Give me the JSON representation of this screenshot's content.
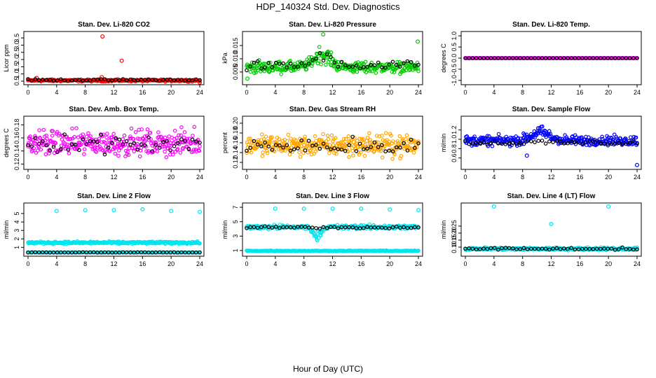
{
  "page": {
    "title": "HDP_140324  Std. Dev. Diagnostics",
    "xlabel": "Hour of Day (UTC)"
  },
  "chart_data": [
    {
      "type": "scatter",
      "title": "Stan. Dev. Li-820 CO2",
      "ylabel": "Licor ppm",
      "xlim": [
        0,
        24
      ],
      "ylim": [
        0.4,
        3.8
      ],
      "xticks": [
        0,
        4,
        8,
        12,
        16,
        20,
        24
      ],
      "yticks": [
        "0.5",
        "1.0",
        "1.5",
        "2.0",
        "2.5",
        "3.0",
        "3.5"
      ],
      "series": [
        {
          "color": "#ff0000",
          "base": 0.55,
          "noise": 0.06,
          "n": 280,
          "outliers": [
            [
              10.4,
              3.6
            ],
            [
              13.1,
              1.92
            ],
            [
              10.3,
              0.78
            ],
            [
              1.2,
              0.72
            ],
            [
              24,
              0.4
            ]
          ]
        },
        {
          "color": "#000000",
          "base": 0.58,
          "noise": 0.05,
          "n": 48
        }
      ]
    },
    {
      "type": "scatter",
      "title": "Stan. Dev. Li-820 Pressure",
      "ylabel": "kPa",
      "xlim": [
        0,
        24
      ],
      "ylim": [
        0.001,
        0.0195
      ],
      "xticks": [
        0,
        4,
        8,
        12,
        16,
        20,
        24
      ],
      "yticks": [
        "0.005",
        "0.010",
        "0.015"
      ],
      "series": [
        {
          "color": "#00cc00",
          "base": 0.0068,
          "noise": 0.0018,
          "n": 320,
          "bump": [
            10.5,
            0.005,
            1.6
          ],
          "outliers": [
            [
              10.7,
              0.0192
            ],
            [
              23.9,
              0.0165
            ],
            [
              0.1,
              0.0025
            ]
          ]
        },
        {
          "color": "#000000",
          "base": 0.0072,
          "noise": 0.0015,
          "n": 48,
          "bump": [
            10.5,
            0.004,
            1.6
          ]
        }
      ]
    },
    {
      "type": "scatter",
      "title": "Stan. Dev. Li-820 Temp.",
      "ylabel": "degrees C",
      "xlim": [
        0,
        24
      ],
      "ylim": [
        -1.1,
        1.1
      ],
      "xticks": [
        0,
        4,
        8,
        12,
        16,
        20,
        24
      ],
      "yticks": [
        "-1.0",
        "-0.5",
        "0.0",
        "0.5",
        "1.0"
      ],
      "series": [
        {
          "color": "#ff00ff",
          "base": 0.0,
          "noise": 0.0,
          "n": 240
        },
        {
          "color": "#000000",
          "base": 0.0,
          "noise": 0.0,
          "n": 48
        }
      ]
    },
    {
      "type": "scatter",
      "title": "Stan. Dev. Amb. Box Temp.",
      "ylabel": "degrees C",
      "xlim": [
        0,
        24
      ],
      "ylim": [
        0.115,
        0.19
      ],
      "xticks": [
        0,
        4,
        8,
        12,
        16,
        20,
        24
      ],
      "yticks": [
        "0.12",
        "0.14",
        "0.16",
        "0.18"
      ],
      "series": [
        {
          "color": "#ff00ff",
          "base": 0.152,
          "noise": 0.016,
          "n": 320
        },
        {
          "color": "#000000",
          "base": 0.152,
          "noise": 0.012,
          "n": 48
        }
      ]
    },
    {
      "type": "scatter",
      "title": "Stan. Dev. Gas Stream RH",
      "ylabel": "percent",
      "xlim": [
        0,
        24
      ],
      "ylim": [
        0.11,
        0.21
      ],
      "xticks": [
        0,
        4,
        8,
        12,
        16,
        20,
        24
      ],
      "yticks": [
        "0.12",
        "0.14",
        "0.16",
        "0.18",
        "0.20"
      ],
      "series": [
        {
          "color": "#ffa500",
          "base": 0.155,
          "noise": 0.018,
          "n": 340
        },
        {
          "color": "#000000",
          "base": 0.155,
          "noise": 0.015,
          "n": 48
        }
      ]
    },
    {
      "type": "scatter",
      "title": "Stan. Dev. Sample Flow",
      "ylabel": "ml/min",
      "xlim": [
        0,
        24
      ],
      "ylim": [
        0.4,
        1.45
      ],
      "xticks": [
        0,
        4,
        8,
        12,
        16,
        20,
        24
      ],
      "yticks": [
        "0.6",
        "0.8",
        "1.0",
        "1.2"
      ],
      "series": [
        {
          "color": "#0000ff",
          "base": 0.97,
          "noise": 0.09,
          "n": 320,
          "bump": [
            10.5,
            0.18,
            1.8
          ],
          "outliers": [
            [
              24,
              0.45
            ],
            [
              8.6,
              0.65
            ]
          ]
        },
        {
          "color": "#000000",
          "base": 0.93,
          "noise": 0.05,
          "n": 48
        }
      ]
    },
    {
      "type": "scatter",
      "title": "Stan. Dev. Line 2 Flow",
      "ylabel": "ml/min",
      "xlim": [
        0,
        24
      ],
      "ylim": [
        0.2,
        6.0
      ],
      "xticks": [
        0,
        4,
        8,
        12,
        16,
        20,
        24
      ],
      "yticks": [
        "1",
        "2",
        "3",
        "4",
        "5"
      ],
      "series": [
        {
          "color": "#00e5ee",
          "base": 1.55,
          "noise": 0.12,
          "n": 300,
          "outliers": [
            [
              4,
              5.3
            ],
            [
              8,
              5.4
            ],
            [
              12,
              5.4
            ],
            [
              16,
              5.5
            ],
            [
              20,
              5.3
            ],
            [
              24,
              5.2
            ]
          ]
        },
        {
          "color": "#00e5ee",
          "base": 0.4,
          "noise": 0.03,
          "n": 200
        },
        {
          "color": "#000000",
          "base": 0.4,
          "noise": 0.02,
          "n": 48
        }
      ]
    },
    {
      "type": "scatter",
      "title": "Stan. Dev. Line 3 Flow",
      "ylabel": "ml/min",
      "xlim": [
        0,
        24
      ],
      "ylim": [
        0.5,
        7.3
      ],
      "xticks": [
        0,
        4,
        8,
        12,
        16,
        20,
        24
      ],
      "yticks": [
        "1",
        "3",
        "5",
        "7"
      ],
      "series": [
        {
          "color": "#00e5ee",
          "base": 4.25,
          "noise": 0.25,
          "n": 300,
          "bump": [
            9.8,
            -1.3,
            0.7
          ],
          "outliers": [
            [
              4,
              6.8
            ],
            [
              8,
              6.8
            ],
            [
              12,
              6.8
            ],
            [
              16,
              6.8
            ],
            [
              20,
              6.7
            ],
            [
              24,
              6.6
            ]
          ]
        },
        {
          "color": "#00e5ee",
          "base": 0.95,
          "noise": 0.05,
          "n": 220
        },
        {
          "color": "#000000",
          "base": 4.2,
          "noise": 0.12,
          "n": 48
        }
      ]
    },
    {
      "type": "scatter",
      "title": "Stan. Dev. Line 4 (LT) Flow",
      "ylabel": "ml/min",
      "xlim": [
        0,
        24
      ],
      "ylim": [
        0.05,
        0.4
      ],
      "xticks": [
        0,
        4,
        8,
        12,
        16,
        20,
        24
      ],
      "yticks": [
        "0.10",
        "0.15",
        "0.20",
        "0.25"
      ],
      "series": [
        {
          "color": "#00e5ee",
          "base": 0.088,
          "noise": 0.008,
          "n": 300,
          "outliers": [
            [
              4,
              0.39
            ],
            [
              20,
              0.39
            ],
            [
              12,
              0.265
            ]
          ]
        },
        {
          "color": "#000000",
          "base": 0.088,
          "noise": 0.006,
          "n": 48
        }
      ]
    }
  ]
}
